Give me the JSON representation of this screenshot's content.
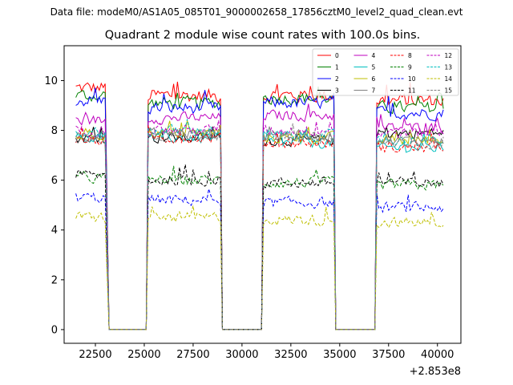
{
  "figure_title": "Data file: modeM0/AS1A05_085T01_9000002658_17856cztM0_level2_quad_clean.evt",
  "chart_data": {
    "type": "line",
    "title": "Quadrant 2 module wise count rates with 100.0s bins.",
    "xlabel": "",
    "ylabel": "",
    "x_offset_label": "+2.853e8",
    "xlim": [
      20900,
      41200
    ],
    "ylim": [
      -0.55,
      11.4
    ],
    "xticks": [
      22500,
      25000,
      27500,
      30000,
      32500,
      35000,
      37500,
      40000
    ],
    "yticks": [
      0,
      2,
      4,
      6,
      8,
      10
    ],
    "legend_location": "top-right",
    "segments": [
      [
        21500,
        23000
      ],
      [
        25200,
        28900
      ],
      [
        31100,
        34700
      ],
      [
        36900,
        40300
      ]
    ],
    "gap_plateaus": [
      [
        23200,
        25100
      ],
      [
        29000,
        31000
      ],
      [
        34800,
        36800
      ]
    ],
    "series": [
      {
        "name": "0",
        "color": "#ff0000",
        "style": "solid",
        "level": [
          9.7,
          9.4,
          9.4,
          9.2
        ],
        "noise": 0.4
      },
      {
        "name": "1",
        "color": "#008000",
        "style": "solid",
        "level": [
          9.4,
          9.1,
          9.3,
          8.9
        ],
        "noise": 0.35
      },
      {
        "name": "2",
        "color": "#0000ff",
        "style": "solid",
        "level": [
          9.2,
          8.9,
          9.1,
          8.7
        ],
        "noise": 0.35
      },
      {
        "name": "3",
        "color": "#000000",
        "style": "solid",
        "level": [
          7.7,
          7.7,
          7.6,
          7.9
        ],
        "noise": 0.3
      },
      {
        "name": "4",
        "color": "#bf00bf",
        "style": "solid",
        "level": [
          8.4,
          8.5,
          8.6,
          8.1
        ],
        "noise": 0.3
      },
      {
        "name": "5",
        "color": "#00bfbf",
        "style": "solid",
        "level": [
          7.7,
          7.7,
          7.5,
          7.3
        ],
        "noise": 0.3
      },
      {
        "name": "6",
        "color": "#bfbf00",
        "style": "solid",
        "level": [
          7.8,
          7.9,
          7.7,
          7.6
        ],
        "noise": 0.3
      },
      {
        "name": "7",
        "color": "#808080",
        "style": "solid",
        "level": [
          7.8,
          7.9,
          7.8,
          7.6
        ],
        "noise": 0.3
      },
      {
        "name": "8",
        "color": "#ff0000",
        "style": "dashed",
        "level": [
          7.6,
          7.7,
          7.5,
          7.3
        ],
        "noise": 0.3
      },
      {
        "name": "9",
        "color": "#008000",
        "style": "dashed",
        "level": [
          6.1,
          6.0,
          5.9,
          5.8
        ],
        "noise": 0.3
      },
      {
        "name": "10",
        "color": "#0000ff",
        "style": "dashed",
        "level": [
          5.3,
          5.2,
          5.1,
          4.9
        ],
        "noise": 0.3
      },
      {
        "name": "11",
        "color": "#000000",
        "style": "dashed",
        "level": [
          6.2,
          6.0,
          5.9,
          5.9
        ],
        "noise": 0.3
      },
      {
        "name": "12",
        "color": "#bf00bf",
        "style": "dashed",
        "level": [
          8.0,
          8.0,
          8.0,
          7.9
        ],
        "noise": 0.3
      },
      {
        "name": "13",
        "color": "#00bfbf",
        "style": "dashed",
        "level": [
          7.9,
          8.0,
          7.8,
          7.6
        ],
        "noise": 0.3
      },
      {
        "name": "14",
        "color": "#bfbf00",
        "style": "dashed",
        "level": [
          4.5,
          4.5,
          4.4,
          4.3
        ],
        "noise": 0.3
      },
      {
        "name": "15",
        "color": "#808080",
        "style": "dashed",
        "level": [
          7.7,
          7.8,
          7.7,
          7.5
        ],
        "noise": 0.3
      }
    ]
  }
}
